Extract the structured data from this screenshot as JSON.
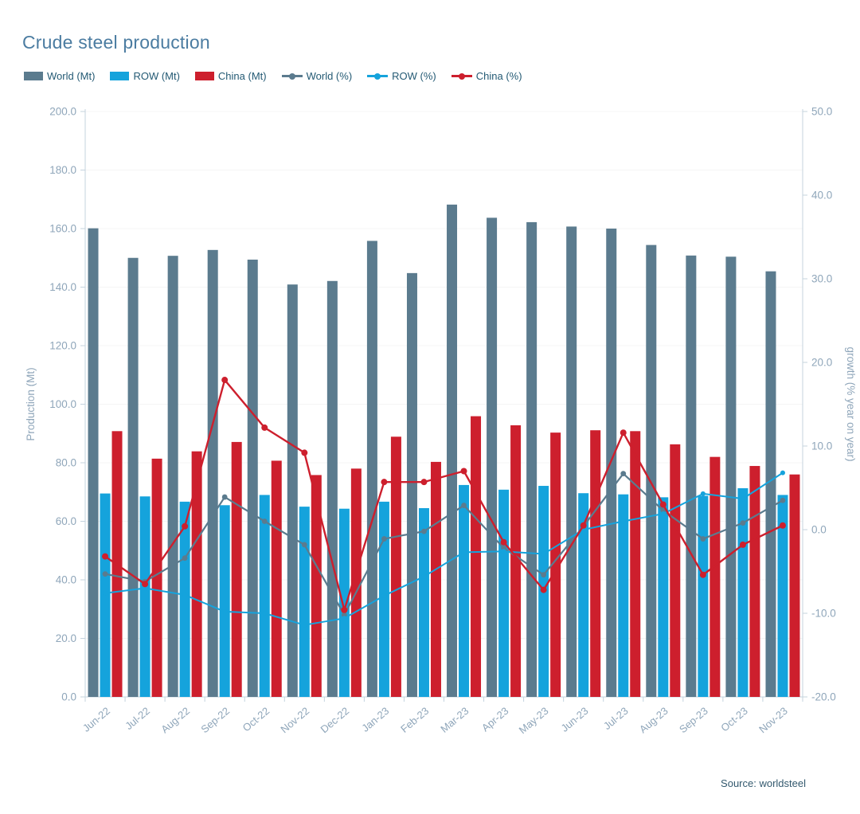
{
  "page": {
    "title": "Crude steel production",
    "source": "Source: worldsteel"
  },
  "colors": {
    "world_bar": "#5b7b8e",
    "row_bar": "#15a3dc",
    "china_bar": "#cd1f2d",
    "world_line": "#5b7b8e",
    "row_line": "#15a3dc",
    "china_line": "#cd1f2d",
    "title_text": "#4b7ca1",
    "axis_text": "#8fa6ba",
    "legend_text": "#245a74",
    "source_text": "#33596e",
    "grid_line": "#f4f4f4",
    "axis_line": "#c4d3de"
  },
  "legend": {
    "items": [
      {
        "label": "World (Mt)",
        "kind": "bar",
        "color_key": "world_bar"
      },
      {
        "label": "ROW (Mt)",
        "kind": "bar",
        "color_key": "row_bar"
      },
      {
        "label": "China (Mt)",
        "kind": "bar",
        "color_key": "china_bar"
      },
      {
        "label": "World (%)",
        "kind": "line",
        "color_key": "world_line"
      },
      {
        "label": "ROW (%)",
        "kind": "line",
        "color_key": "row_line"
      },
      {
        "label": "China (%)",
        "kind": "line",
        "color_key": "china_line"
      }
    ]
  },
  "chart_data": {
    "type": "bar+line combo",
    "title": "Crude steel production",
    "grid": true,
    "legend_position": "top",
    "categories": [
      "Jun-22",
      "Jul-22",
      "Aug-22",
      "Sep-22",
      "Oct-22",
      "Nov-22",
      "Dec-22",
      "Jan-23",
      "Feb-23",
      "Mar-23",
      "Apr-23",
      "May-23",
      "Jun-23",
      "Jul-23",
      "Aug-23",
      "Sep-23",
      "Oct-23",
      "Nov-23"
    ],
    "bar_series": [
      {
        "name": "World (Mt)",
        "axis": "left",
        "color_key": "world_bar",
        "values": [
          160.1,
          150.0,
          150.7,
          152.7,
          149.4,
          140.9,
          142.1,
          155.8,
          144.8,
          168.2,
          163.7,
          162.2,
          160.7,
          160.0,
          154.4,
          150.8,
          150.4,
          145.4
        ]
      },
      {
        "name": "ROW (Mt)",
        "axis": "left",
        "color_key": "row_bar",
        "values": [
          69.5,
          68.5,
          66.7,
          65.5,
          69.0,
          65.0,
          64.3,
          66.7,
          64.5,
          72.4,
          70.8,
          72.1,
          69.6,
          69.2,
          68.2,
          68.7,
          71.3,
          69.0
        ]
      },
      {
        "name": "China (Mt)",
        "axis": "left",
        "color_key": "china_bar",
        "values": [
          90.8,
          81.4,
          83.9,
          87.1,
          80.7,
          75.8,
          78.0,
          88.9,
          80.3,
          95.9,
          92.8,
          90.3,
          91.1,
          90.8,
          86.3,
          82.0,
          78.9,
          76.0
        ]
      }
    ],
    "line_series": [
      {
        "name": "World (%)",
        "axis": "right",
        "color_key": "world_line",
        "values": [
          -5.3,
          -6.2,
          -3.4,
          3.9,
          1.0,
          -1.8,
          -10.2,
          -1.1,
          -0.2,
          2.9,
          -2.2,
          -5.4,
          0.4,
          6.7,
          2.3,
          -1.1,
          0.8,
          3.5
        ]
      },
      {
        "name": "ROW (%)",
        "axis": "right",
        "color_key": "row_line",
        "values": [
          -7.6,
          -7.0,
          -7.8,
          -9.8,
          -10.0,
          -11.4,
          -10.6,
          -7.9,
          -5.6,
          -2.7,
          -2.6,
          -2.9,
          0.0,
          1.0,
          1.9,
          4.3,
          3.7,
          6.8
        ]
      },
      {
        "name": "China (%)",
        "axis": "right",
        "color_key": "china_line",
        "values": [
          -3.2,
          -6.5,
          0.4,
          17.9,
          12.2,
          9.2,
          -9.6,
          5.7,
          5.7,
          7.0,
          -1.5,
          -7.2,
          0.5,
          11.6,
          3.0,
          -5.4,
          -1.8,
          0.5
        ]
      }
    ],
    "left_axis": {
      "title": "Production (Mt)",
      "min": 0,
      "max": 200,
      "step": 20,
      "tick_format": "one_decimal"
    },
    "right_axis": {
      "title": "growth (% year on year)",
      "min": -20,
      "max": 50,
      "step": 10,
      "tick_format": "one_decimal"
    }
  }
}
